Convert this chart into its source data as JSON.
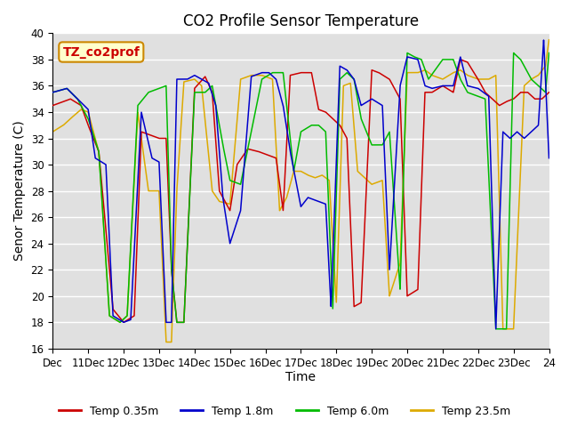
{
  "title": "CO2 Profile Sensor Temperature",
  "xlabel": "Time",
  "ylabel": "Senor Temperature (C)",
  "ylim": [
    16,
    40
  ],
  "yticks": [
    16,
    18,
    20,
    22,
    24,
    26,
    28,
    30,
    32,
    34,
    36,
    38,
    40
  ],
  "xtick_labels": [
    "Dec",
    "11Dec",
    "12Dec",
    "13Dec",
    "14Dec",
    "15Dec",
    "16Dec",
    "17Dec",
    "18Dec",
    "19Dec",
    "20Dec",
    "21Dec",
    "22Dec",
    "23Dec",
    "24"
  ],
  "colors": {
    "red": "#cc0000",
    "blue": "#0000cc",
    "green": "#00bb00",
    "orange": "#ddaa00"
  },
  "legend_labels": [
    "Temp 0.35m",
    "Temp 1.8m",
    "Temp 6.0m",
    "Temp 23.5m"
  ],
  "annotation_text": "TZ_co2prof",
  "annotation_color": "#cc0000",
  "annotation_bg": "#ffffcc",
  "annotation_border": "#cc8800",
  "bg_color": "#e0e0e0",
  "title_fontsize": 12,
  "axis_fontsize": 10,
  "tick_fontsize": 8.5
}
